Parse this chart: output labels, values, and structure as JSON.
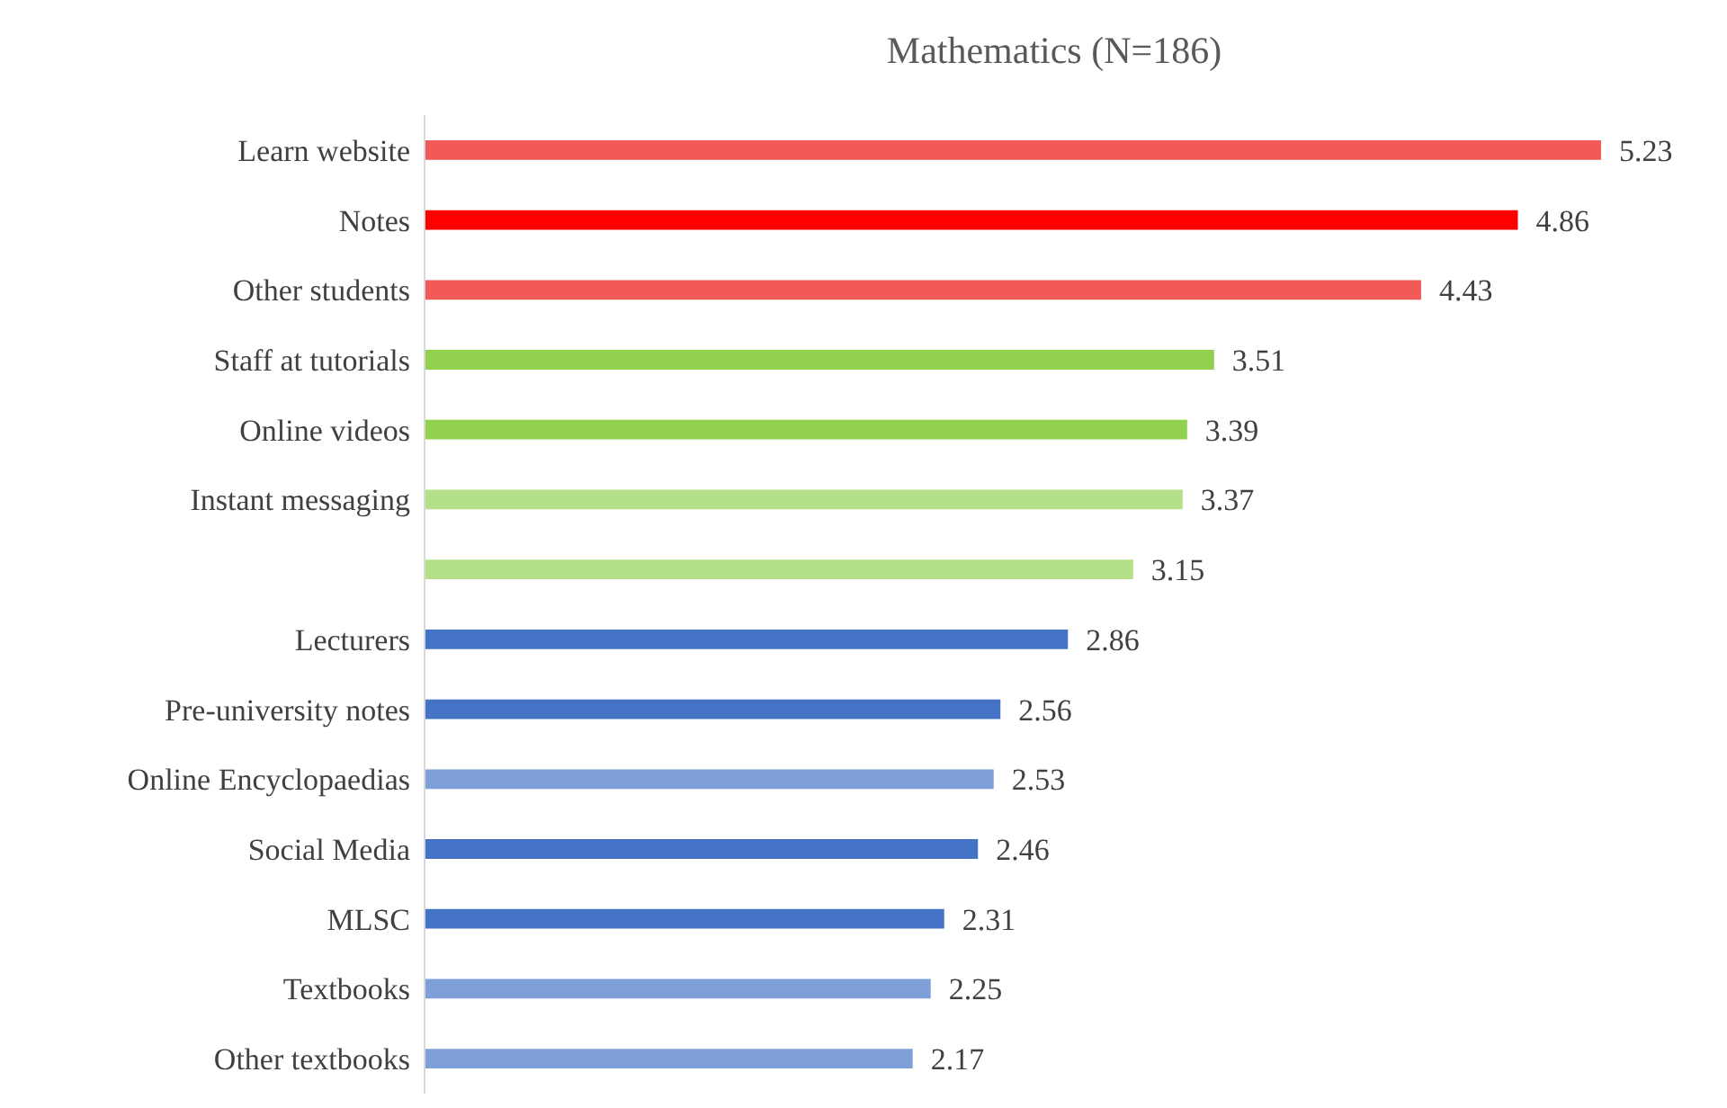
{
  "chart_data": {
    "type": "bar",
    "orientation": "horizontal",
    "title": "Mathematics (N=186)",
    "categories": [
      "Learn website",
      "Notes",
      "Other students",
      "Staff at tutorials",
      "Online videos",
      "Instant messaging",
      null,
      "Lecturers",
      "Pre-university notes",
      "Online Encyclopaedias",
      "Social Media",
      "MLSC",
      "Textbooks",
      "Other textbooks"
    ],
    "values": [
      5.23,
      4.86,
      4.43,
      3.51,
      3.39,
      3.37,
      3.15,
      2.86,
      2.56,
      2.53,
      2.46,
      2.31,
      2.25,
      2.17
    ],
    "colors": [
      "#f25a5a",
      "#ff0000",
      "#f25a5a",
      "#92d050",
      "#92d050",
      "#b5e08a",
      "#b5e08a",
      "#4472c4",
      "#4472c4",
      "#7f9fd8",
      "#4472c4",
      "#4472c4",
      "#7f9fd8",
      "#7f9fd8"
    ],
    "data_labels": true
  }
}
